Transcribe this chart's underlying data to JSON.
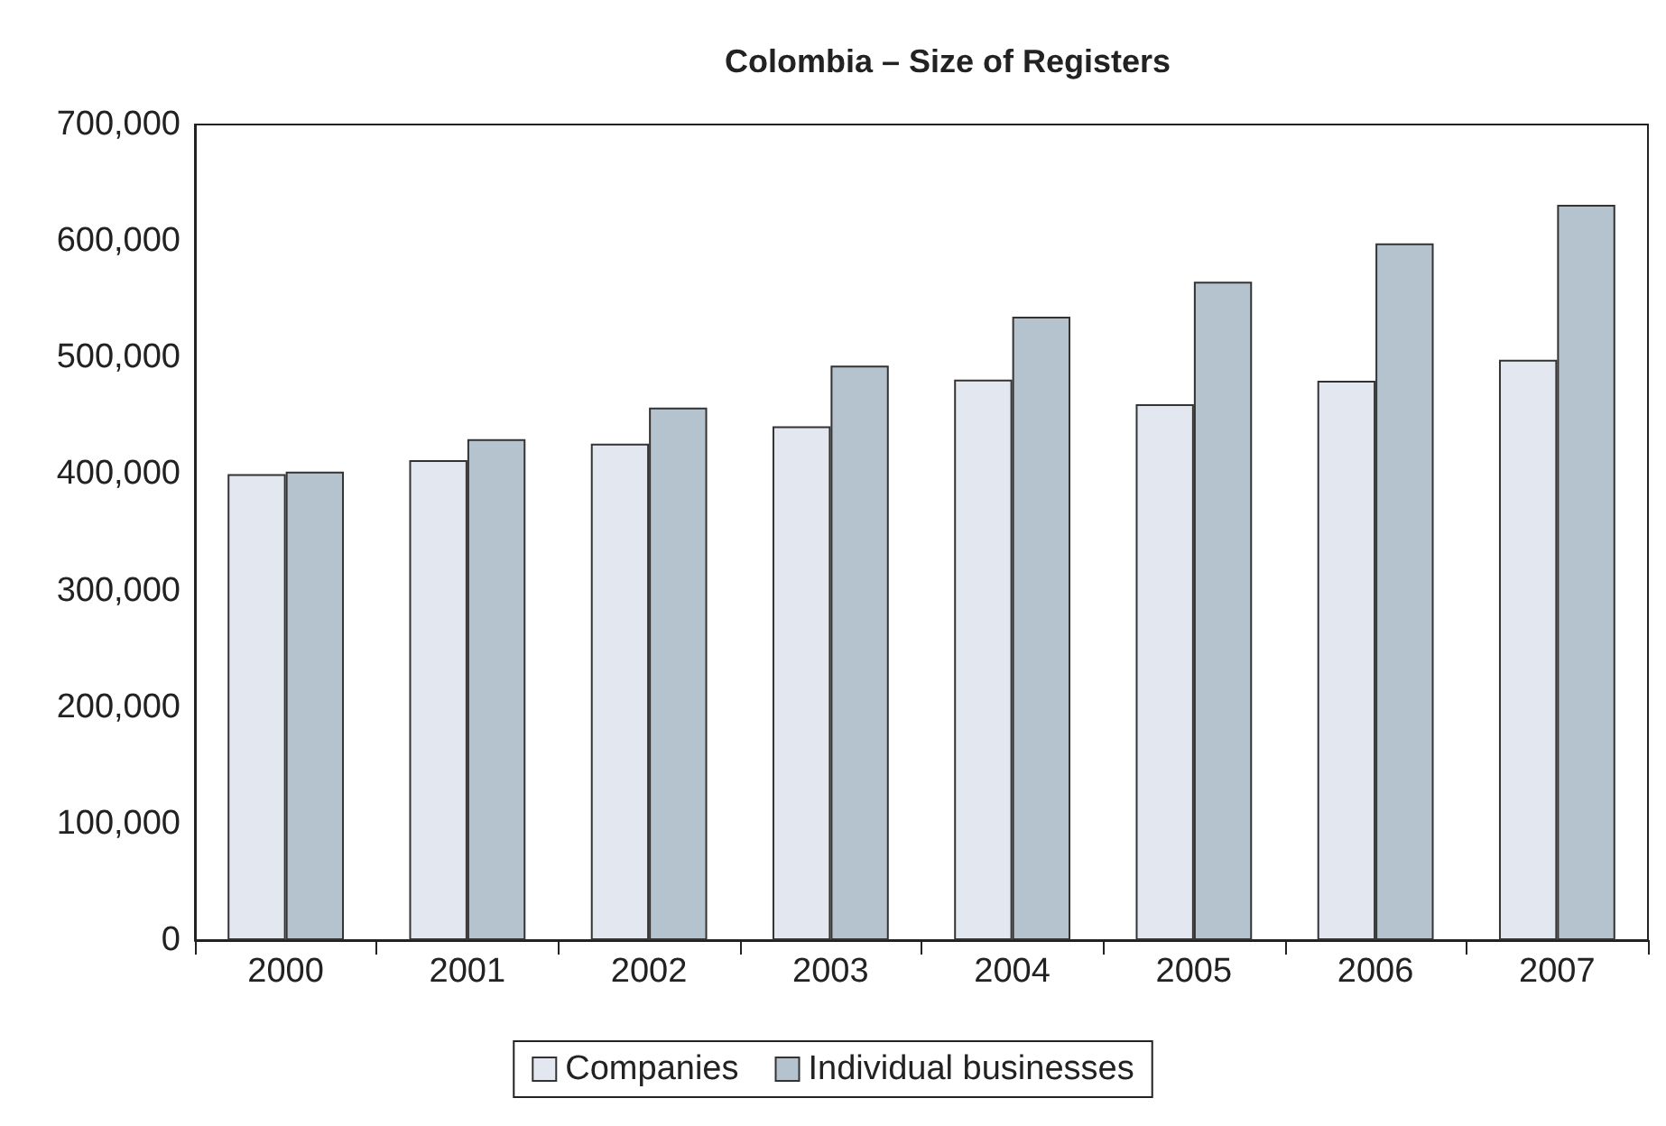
{
  "chart_data": {
    "type": "bar",
    "title": "Colombia – Size of Registers",
    "categories": [
      "2000",
      "2001",
      "2002",
      "2003",
      "2004",
      "2005",
      "2006",
      "2007"
    ],
    "series": [
      {
        "name": "Companies",
        "color": "#e3e7ef",
        "values": [
          400000,
          412000,
          426000,
          441000,
          481000,
          460000,
          480000,
          498000
        ]
      },
      {
        "name": "Individual businesses",
        "color": "#b4c3ce",
        "values": [
          402000,
          430000,
          457000,
          493000,
          535000,
          565000,
          598000,
          631000
        ]
      }
    ],
    "ylim": [
      0,
      700000
    ],
    "yticks": [
      0,
      {
        "value": 100000,
        "label": "100,000"
      },
      {
        "value": 200000,
        "label": "200,000"
      },
      {
        "value": 300000,
        "label": "300,000"
      },
      {
        "value": 400000,
        "label": "400,000"
      },
      {
        "value": 500000,
        "label": "500,000"
      },
      {
        "value": 600000,
        "label": "600,000"
      },
      {
        "value": 700000,
        "label": "700,000"
      }
    ],
    "grid": false,
    "legend": "bottom"
  }
}
